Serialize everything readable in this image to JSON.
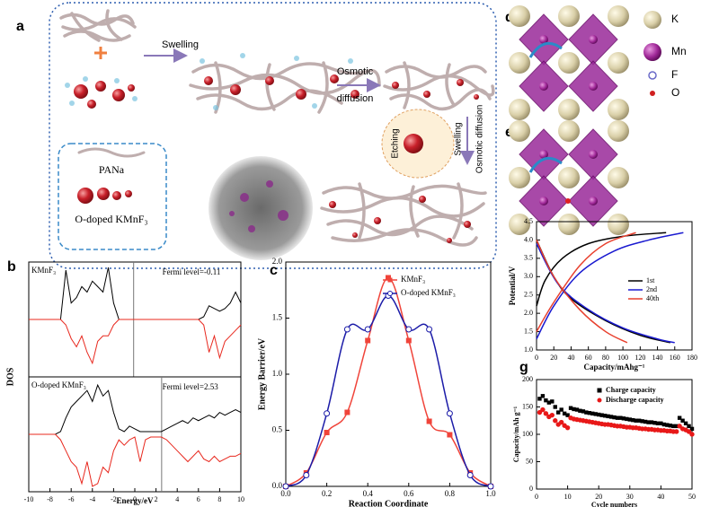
{
  "figure": {
    "panel_labels": [
      "a",
      "b",
      "c",
      "d",
      "e",
      "f",
      "g"
    ],
    "schematic": {
      "swelling": "Swelling",
      "osmotic_diffusion": [
        "Osmotic",
        "diffusion"
      ],
      "etching": "Etching",
      "swelling_2": "Swelling",
      "osmotic_diffusion_2": "Osmotic diffusion",
      "pana": "PANa",
      "o_doped": "O-doped KMnF₃"
    },
    "crystal_legend": [
      "K",
      "Mn",
      "F",
      "O"
    ]
  },
  "chart_data": [
    {
      "type": "line",
      "xlabel": "Energy/eV",
      "ylabel": "DOS",
      "x": [
        -10,
        -9.5,
        -9,
        -8.5,
        -8,
        -7.5,
        -7,
        -6.5,
        -6,
        -5.5,
        -5,
        -4.5,
        -4,
        -3.5,
        -3,
        -2.5,
        -2,
        -1.5,
        -1,
        -0.5,
        0,
        0.5,
        1,
        1.5,
        2,
        2.5,
        3,
        3.5,
        4,
        4.5,
        5,
        5.5,
        6,
        6.5,
        7,
        7.5,
        8,
        8.5,
        9,
        9.5,
        10
      ],
      "xlim": [
        -10,
        10
      ],
      "xticks": [
        -10,
        -8,
        -6,
        -4,
        -2,
        0,
        2,
        4,
        6,
        8,
        10
      ],
      "subplots": [
        {
          "label": "KMnF₃",
          "annotation": "Fermi level=-0.11",
          "fermi_level": -0.11,
          "ylim": [
            -1,
            1
          ],
          "series": [
            {
              "color": "#000000",
              "values": [
                0,
                0,
                0,
                0,
                0,
                0,
                0,
                0.9,
                0.3,
                0.4,
                0.6,
                0.5,
                0.7,
                0.6,
                0.5,
                0.95,
                0.3,
                0,
                0,
                0,
                0,
                0,
                0,
                0,
                0,
                0,
                0,
                0,
                0,
                0,
                0,
                0,
                0,
                0.05,
                0.25,
                0.2,
                0.15,
                0.2,
                0.3,
                0.5,
                0.3
              ]
            },
            {
              "color": "#e8281e",
              "values": [
                0,
                0,
                0,
                0,
                0,
                0,
                0,
                -0.1,
                -0.35,
                -0.5,
                -0.3,
                -0.6,
                -0.8,
                -0.4,
                -0.3,
                -0.3,
                -0.1,
                0,
                0,
                0,
                0,
                0,
                0,
                0,
                0,
                0,
                0,
                0,
                0,
                0,
                0,
                0,
                0,
                -0.1,
                -0.6,
                -0.3,
                -0.7,
                -0.4,
                -0.3,
                -0.2,
                -0.1
              ]
            }
          ]
        },
        {
          "label": "O-doped KMnF₃",
          "annotation": "Fermi level=2.53",
          "fermi_level": 2.53,
          "ylim": [
            -1,
            1
          ],
          "series": [
            {
              "color": "#000000",
              "values": [
                0,
                0,
                0,
                0,
                0,
                0,
                0.05,
                0.3,
                0.5,
                0.6,
                0.7,
                0.8,
                0.6,
                0.9,
                0.7,
                0.8,
                0.4,
                0.1,
                0.05,
                0.15,
                0.1,
                0.05,
                0.05,
                0.05,
                0.05,
                0.05,
                0.1,
                0.15,
                0.2,
                0.25,
                0.2,
                0.3,
                0.25,
                0.3,
                0.35,
                0.3,
                0.4,
                0.35,
                0.4,
                0.45,
                0.4
              ]
            },
            {
              "color": "#e8281e",
              "values": [
                0,
                0,
                0,
                0,
                0,
                0,
                -0.1,
                -0.3,
                -0.5,
                -0.6,
                -0.9,
                -0.5,
                -0.95,
                -0.9,
                -0.6,
                -0.7,
                -0.3,
                -0.1,
                -0.2,
                -0.1,
                -0.05,
                -0.5,
                -0.1,
                -0.05,
                -0.05,
                -0.05,
                -0.1,
                -0.2,
                -0.3,
                -0.4,
                -0.5,
                -0.4,
                -0.3,
                -0.45,
                -0.5,
                -0.4,
                -0.5,
                -0.45,
                -0.4,
                -0.4,
                -0.35
              ]
            }
          ]
        }
      ]
    },
    {
      "type": "line",
      "xlabel": "Reaction Coordinate",
      "ylabel": "Energy Barrier/eV",
      "legend": "upper right",
      "x": [
        0,
        0.1,
        0.2,
        0.3,
        0.4,
        0.5,
        0.6,
        0.7,
        0.8,
        0.9,
        1
      ],
      "xlim": [
        0,
        1
      ],
      "xticks": [
        {
          "value": 0,
          "label": "0.0"
        },
        0.2,
        0.4,
        0.6,
        0.8,
        {
          "value": 1,
          "label": "1.0"
        }
      ],
      "ylim": [
        0,
        2
      ],
      "yticks": [
        {
          "value": 0,
          "label": "0.0"
        },
        0.5,
        {
          "value": 1,
          "label": "1.0"
        },
        1.5,
        {
          "value": 2,
          "label": "2.0"
        }
      ],
      "series": [
        {
          "name": "KMnF₃",
          "color": "#f0443a",
          "marker": "square",
          "values": [
            0,
            0.12,
            0.48,
            0.66,
            1.3,
            1.86,
            1.3,
            0.58,
            0.46,
            0.12,
            0
          ]
        },
        {
          "name": "O-doped KMnF₃",
          "color": "#1c1ca8",
          "marker": "circle",
          "values": [
            0,
            0.1,
            0.65,
            1.4,
            1.4,
            1.7,
            1.4,
            1.4,
            0.65,
            0.1,
            0
          ]
        }
      ]
    },
    {
      "type": "line",
      "xlabel": "Capacity/mAhg⁻¹",
      "ylabel": "Potential/V",
      "legend": "center right",
      "xlim": [
        0,
        180
      ],
      "xticks": [
        0,
        20,
        40,
        60,
        80,
        100,
        120,
        140,
        160,
        180
      ],
      "ylim": [
        1,
        4.5
      ],
      "yticks": [
        {
          "value": 1,
          "label": "1.0"
        },
        1.5,
        {
          "value": 2,
          "label": "2.0"
        },
        2.5,
        {
          "value": 3,
          "label": "3.0"
        },
        3.5,
        {
          "value": 4,
          "label": "4.0"
        },
        4.5
      ],
      "series": [
        {
          "name": "1st",
          "color": "#000000",
          "x": [
            0,
            10,
            30,
            60,
            100,
            150,
            null,
            0,
            20,
            40,
            80,
            120,
            155
          ],
          "values": [
            2.2,
            2.9,
            3.5,
            3.9,
            4.1,
            4.2,
            null,
            4,
            3,
            2.4,
            1.8,
            1.4,
            1.2
          ]
        },
        {
          "name": "2nd",
          "color": "#1a1ad0",
          "x": [
            0,
            20,
            50,
            90,
            130,
            170,
            null,
            0,
            25,
            60,
            100,
            140,
            160
          ],
          "values": [
            1.3,
            2.2,
            3.1,
            3.7,
            4,
            4.2,
            null,
            3.9,
            2.8,
            2.1,
            1.6,
            1.3,
            1.2
          ]
        },
        {
          "name": "40th",
          "color": "#e8402e",
          "x": [
            0,
            20,
            50,
            80,
            115,
            null,
            0,
            20,
            50,
            80,
            105
          ],
          "values": [
            1.5,
            2.3,
            3.3,
            3.9,
            4.2,
            null,
            4,
            3,
            2.1,
            1.5,
            1.2
          ]
        }
      ]
    },
    {
      "type": "scatter",
      "xlabel": "Cycle numbers",
      "ylabel": "Capacity/mAh g⁻¹",
      "legend": "upper right",
      "x": [
        1,
        2,
        3,
        4,
        5,
        6,
        7,
        8,
        9,
        10,
        11,
        12,
        13,
        14,
        15,
        16,
        17,
        18,
        19,
        20,
        21,
        22,
        23,
        24,
        25,
        26,
        27,
        28,
        29,
        30,
        31,
        32,
        33,
        34,
        35,
        36,
        37,
        38,
        39,
        40,
        41,
        42,
        43,
        44,
        45,
        46,
        47,
        48,
        49,
        50
      ],
      "xlim": [
        0,
        50
      ],
      "xticks": [
        0,
        10,
        20,
        30,
        40,
        50
      ],
      "ylim": [
        0,
        200
      ],
      "yticks": [
        0,
        50,
        100,
        150,
        200
      ],
      "series": [
        {
          "name": "Charge capacity",
          "color": "#000000",
          "marker": "square",
          "values": [
            165,
            170,
            162,
            158,
            160,
            150,
            140,
            145,
            138,
            135,
            148,
            146,
            145,
            143,
            142,
            140,
            139,
            138,
            137,
            136,
            135,
            134,
            133,
            132,
            131,
            130,
            130,
            129,
            128,
            127,
            126,
            125,
            125,
            124,
            123,
            122,
            122,
            121,
            120,
            120,
            118,
            117,
            116,
            115,
            115,
            130,
            125,
            120,
            115,
            110
          ]
        },
        {
          "name": "Discharge capacity",
          "color": "#e81818",
          "marker": "circle",
          "values": [
            140,
            145,
            138,
            132,
            135,
            125,
            118,
            122,
            116,
            112,
            130,
            128,
            127,
            126,
            125,
            124,
            123,
            122,
            121,
            120,
            119,
            118,
            118,
            117,
            116,
            115,
            115,
            114,
            113,
            113,
            112,
            112,
            111,
            110,
            110,
            109,
            109,
            108,
            108,
            107,
            107,
            106,
            106,
            105,
            105,
            115,
            110,
            108,
            105,
            100
          ]
        }
      ]
    }
  ]
}
